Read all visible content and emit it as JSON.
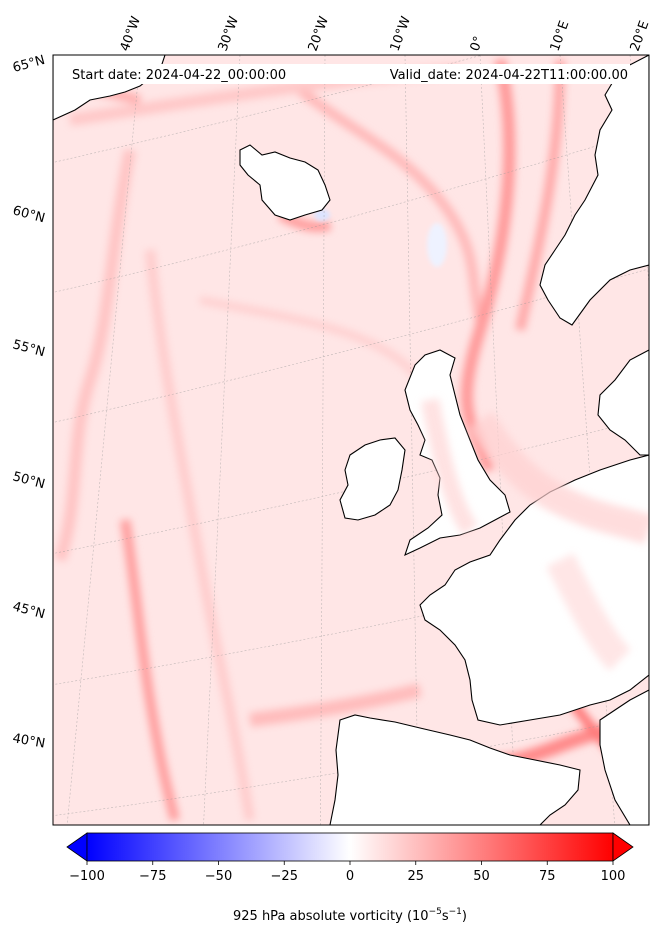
{
  "header": {
    "start_date": "Start date: 2024-04-22_00:00:00",
    "valid_date": "Valid_date: 2024-04-22T11:00:00.00"
  },
  "longitude_labels": [
    "40°W",
    "30°W",
    "20°W",
    "10°W",
    "0°",
    "10°E",
    "20°E"
  ],
  "latitude_labels": [
    "65°N",
    "60°N",
    "55°N",
    "50°N",
    "45°N",
    "40°N"
  ],
  "colorbar": {
    "min": -100,
    "max": 100,
    "tick_labels": [
      "−100",
      "−75",
      "−50",
      "−25",
      "0",
      "25",
      "50",
      "75",
      "100"
    ],
    "title": "925 hPa absolute vorticity (10",
    "title_exp1": "−5",
    "title_mid": "s",
    "title_exp2": "−1",
    "title_end": ")",
    "low_color": "#0000ff",
    "mid_color": "#ffffff",
    "high_color": "#ff0000",
    "extend": "both"
  },
  "map": {
    "field": "925 hPa absolute vorticity",
    "dominant_sign": "positive",
    "land_color": "#ffffff",
    "coastline_color": "#000000"
  }
}
